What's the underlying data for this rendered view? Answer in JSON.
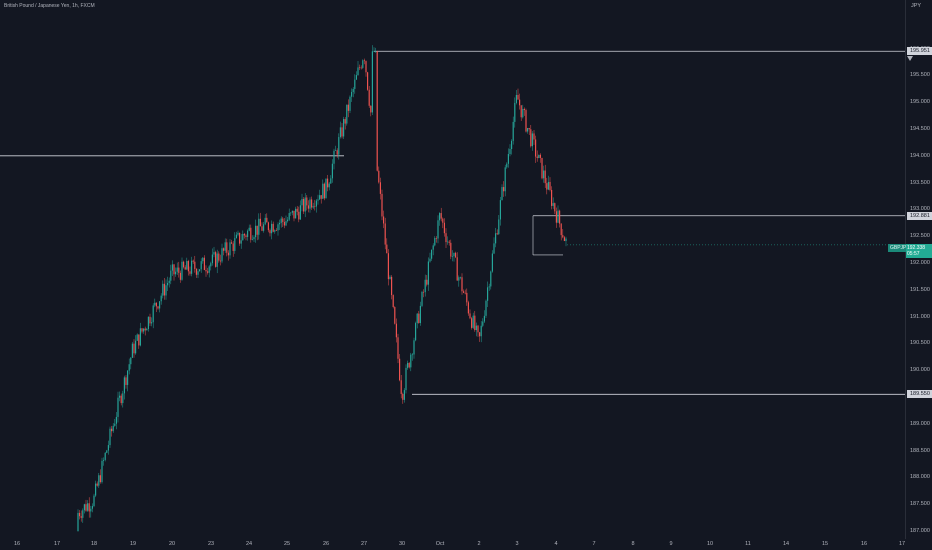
{
  "header": {
    "title": "British Pound / Japanese Yen, 1h, FXCM"
  },
  "axis": {
    "currency": "JPY",
    "price_ticks": [
      "196.000",
      "195.500",
      "195.000",
      "194.500",
      "194.000",
      "193.500",
      "193.000",
      "192.500",
      "192.000",
      "191.500",
      "191.000",
      "190.500",
      "190.000",
      "189.500",
      "189.000",
      "188.500",
      "188.000",
      "187.500",
      "187.000"
    ],
    "level_labels": [
      "195.951",
      "192.881",
      "189.550"
    ],
    "current": {
      "symbol": "GBPJPY",
      "price": "192.338",
      "countdown": "05:57"
    },
    "time_ticks": [
      "16",
      "17",
      "18",
      "19",
      "20",
      "23",
      "24",
      "25",
      "26",
      "27",
      "30",
      "Oct",
      "2",
      "3",
      "4",
      "7",
      "8",
      "9",
      "10",
      "11",
      "14",
      "15",
      "16",
      "17"
    ]
  },
  "colors": {
    "background": "#131722",
    "up": "#26a69a",
    "down": "#ef5350",
    "line": "#d1d4dc",
    "accent": "#22ab94"
  },
  "chart_data": {
    "type": "candlestick",
    "title": "British Pound / Japanese Yen, 1h, FXCM",
    "x_label": "",
    "y_label": "JPY",
    "ylim": [
      186.9,
      196.6
    ],
    "price_levels": [
      195.951,
      192.881,
      189.55
    ],
    "horizontal_rays": [
      194.0
    ],
    "current_price": 192.338,
    "key_points": [
      {
        "date": "Sep 17",
        "price": 187.0
      },
      {
        "date": "Sep 18",
        "price": 187.6
      },
      {
        "date": "Sep 19",
        "price": 190.4
      },
      {
        "date": "Sep 20",
        "price": 191.8
      },
      {
        "date": "Sep 23",
        "price": 192.0
      },
      {
        "date": "Sep 24",
        "price": 192.6
      },
      {
        "date": "Sep 25",
        "price": 192.8
      },
      {
        "date": "Sep 26",
        "price": 193.4
      },
      {
        "date": "Sep 27",
        "price": 195.951
      },
      {
        "date": "Sep 30",
        "price": 189.55
      },
      {
        "date": "Oct 1",
        "price": 192.9
      },
      {
        "date": "Oct 2",
        "price": 190.5
      },
      {
        "date": "Oct 3",
        "price": 195.1
      },
      {
        "date": "Oct 4",
        "price": 192.338
      }
    ]
  }
}
